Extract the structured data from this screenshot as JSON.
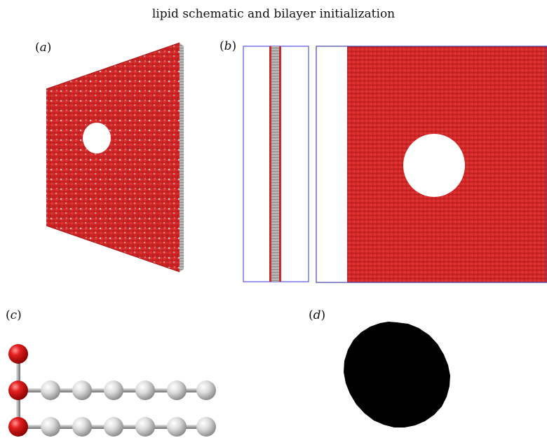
{
  "title": "lipid schematic and bilayer initialization",
  "panels": {
    "a": {
      "letter": "a"
    },
    "b": {
      "letter": "b"
    },
    "c": {
      "letter": "c"
    },
    "d": {
      "letter": "d"
    }
  },
  "colors": {
    "membrane_red": "#d42a2a",
    "membrane_grey": "#b8b8b8",
    "box_outline": "#5555dd",
    "head_bead": "#dd1a1a",
    "tail_bead": "#dcdcdc",
    "mask": "#000000"
  }
}
